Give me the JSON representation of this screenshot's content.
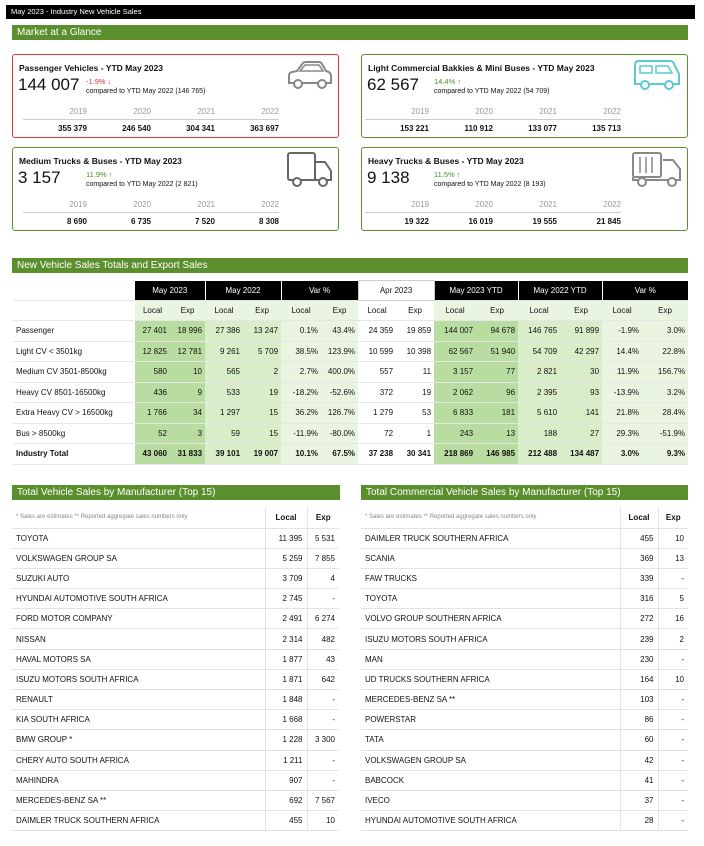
{
  "topbar": "May 2023 - Industry New Vehicle Sales",
  "glance_title": "Market at a Glance",
  "cards": [
    {
      "title": "Passenger Vehicles - YTD May 2023",
      "value": "144 007",
      "pct": "-1.9% ↓",
      "compare": "compared to YTD May 2022 (146 765)",
      "years": [
        "2019",
        "2020",
        "2021",
        "2022"
      ],
      "vals": [
        "355 379",
        "246 540",
        "304 341",
        "363 697"
      ],
      "icon": "car-icon"
    },
    {
      "title": "Light Commercial Bakkies & Mini Buses - YTD May 2023",
      "value": "62 567",
      "pct": "14.4% ↑",
      "compare": "compared to YTD May 2022 (54 709)",
      "years": [
        "2019",
        "2020",
        "2021",
        "2022"
      ],
      "vals": [
        "153 221",
        "110 912",
        "133 077",
        "135 713"
      ],
      "icon": "van-icon"
    },
    {
      "title": "Medium Trucks & Buses - YTD May 2023",
      "value": "3 157",
      "pct": "11.9% ↑",
      "compare": "compared to YTD May 2022 (2 821)",
      "years": [
        "2019",
        "2020",
        "2021",
        "2022"
      ],
      "vals": [
        "8 690",
        "6 735",
        "7 520",
        "8 308"
      ],
      "icon": "truck-icon"
    },
    {
      "title": "Heavy Trucks & Buses - YTD May 2023",
      "value": "9 138",
      "pct": "11.5% ↑",
      "compare": "compared to YTD May 2022 (8 193)",
      "years": [
        "2019",
        "2020",
        "2021",
        "2022"
      ],
      "vals": [
        "19 322",
        "16 019",
        "19 555",
        "21 845"
      ],
      "icon": "heavy-truck-icon"
    }
  ],
  "totals_title": "New Vehicle Sales Totals and Export Sales",
  "totals_header": [
    "May 2023",
    "May 2022",
    "Var %",
    "Apr 2023",
    "May 2023 YTD",
    "May 2022 YTD",
    "Var %"
  ],
  "totals_sub": [
    "Local",
    "Exp",
    "Local",
    "Exp",
    "Local",
    "Exp",
    "Local",
    "Exp",
    "Local",
    "Exp",
    "Local",
    "Exp",
    "Local",
    "Exp"
  ],
  "totals_rows": [
    {
      "label": "Passenger",
      "v": [
        "27 401",
        "18 996",
        "27 386",
        "13 247",
        "0.1%",
        "43.4%",
        "24 359",
        "19 859",
        "144 007",
        "94 678",
        "146 765",
        "91 899",
        "-1.9%",
        "3.0%"
      ]
    },
    {
      "label": "Light CV < 3501kg",
      "v": [
        "12 825",
        "12 781",
        "9 261",
        "5 709",
        "38.5%",
        "123.9%",
        "10 599",
        "10 398",
        "62 567",
        "51 940",
        "54 709",
        "42 297",
        "14.4%",
        "22.8%"
      ]
    },
    {
      "label": "Medium CV 3501-8500kg",
      "v": [
        "580",
        "10",
        "565",
        "2",
        "2.7%",
        "400.0%",
        "557",
        "11",
        "3 157",
        "77",
        "2 821",
        "30",
        "11.9%",
        "156.7%"
      ]
    },
    {
      "label": "Heavy CV 8501-16500kg",
      "v": [
        "436",
        "9",
        "533",
        "19",
        "-18.2%",
        "-52.6%",
        "372",
        "19",
        "2 062",
        "96",
        "2 395",
        "93",
        "-13.9%",
        "3.2%"
      ]
    },
    {
      "label": "Extra Heavy CV > 16500kg",
      "v": [
        "1 766",
        "34",
        "1 297",
        "15",
        "36.2%",
        "126.7%",
        "1 279",
        "53",
        "6 833",
        "181",
        "5 610",
        "141",
        "21.8%",
        "28.4%"
      ]
    },
    {
      "label": "Bus > 8500kg",
      "v": [
        "52",
        "3",
        "59",
        "15",
        "-11.9%",
        "-80.0%",
        "72",
        "1",
        "243",
        "13",
        "188",
        "27",
        "29.3%",
        "-51.9%"
      ]
    },
    {
      "label": "Industry Total",
      "v": [
        "43 060",
        "31 833",
        "39 101",
        "19 007",
        "10.1%",
        "67.5%",
        "37 238",
        "30 341",
        "218 869",
        "146 985",
        "212 488",
        "134 487",
        "3.0%",
        "9.3%"
      ]
    }
  ],
  "vehicle_title": "Total Vehicle Sales by Manufacturer (Top 15)",
  "commercial_title": "Total Commercial Vehicle Sales by Manufacturer (Top 15)",
  "note": "* Sales are estimates ** Reported aggregate sales numbers only",
  "col_local": "Local",
  "col_exp": "Exp",
  "vehicle_rows": [
    [
      "TOYOTA",
      "11 395",
      "5 531"
    ],
    [
      "VOLKSWAGEN GROUP SA",
      "5 259",
      "7 855"
    ],
    [
      "SUZUKI AUTO",
      "3 709",
      "4"
    ],
    [
      "HYUNDAI AUTOMOTIVE SOUTH AFRICA",
      "2 745",
      "-"
    ],
    [
      "FORD MOTOR COMPANY",
      "2 491",
      "6 274"
    ],
    [
      "NISSAN",
      "2 314",
      "482"
    ],
    [
      "HAVAL MOTORS SA",
      "1 877",
      "43"
    ],
    [
      "ISUZU MOTORS SOUTH AFRICA",
      "1 871",
      "642"
    ],
    [
      "RENAULT",
      "1 848",
      "-"
    ],
    [
      "KIA SOUTH AFRICA",
      "1 668",
      "-"
    ],
    [
      "BMW GROUP *",
      "1 228",
      "3 300"
    ],
    [
      "CHERY AUTO SOUTH AFRICA",
      "1 211",
      "-"
    ],
    [
      "MAHINDRA",
      "907",
      "-"
    ],
    [
      "MERCEDES-BENZ SA **",
      "692",
      "7 567"
    ],
    [
      "DAIMLER TRUCK SOUTHERN AFRICA",
      "455",
      "10"
    ]
  ],
  "commercial_rows": [
    [
      "DAIMLER TRUCK SOUTHERN AFRICA",
      "455",
      "10"
    ],
    [
      "SCANIA",
      "369",
      "13"
    ],
    [
      "FAW TRUCKS",
      "339",
      "-"
    ],
    [
      "TOYOTA",
      "316",
      "5"
    ],
    [
      "VOLVO GROUP SOUTHERN AFRICA",
      "272",
      "16"
    ],
    [
      "ISUZU MOTORS SOUTH AFRICA",
      "239",
      "2"
    ],
    [
      "MAN",
      "230",
      "-"
    ],
    [
      "UD TRUCKS SOUTHERN AFRICA",
      "164",
      "10"
    ],
    [
      "MERCEDES-BENZ SA **",
      "103",
      "-"
    ],
    [
      "POWERSTAR",
      "86",
      "-"
    ],
    [
      "TATA",
      "60",
      "-"
    ],
    [
      "VOLKSWAGEN GROUP SA",
      "42",
      "-"
    ],
    [
      "BABCOCK",
      "41",
      "-"
    ],
    [
      "IVECO",
      "37",
      "-"
    ],
    [
      "HYUNDAI AUTOMOTIVE SOUTH AFRICA",
      "28",
      "-"
    ]
  ]
}
